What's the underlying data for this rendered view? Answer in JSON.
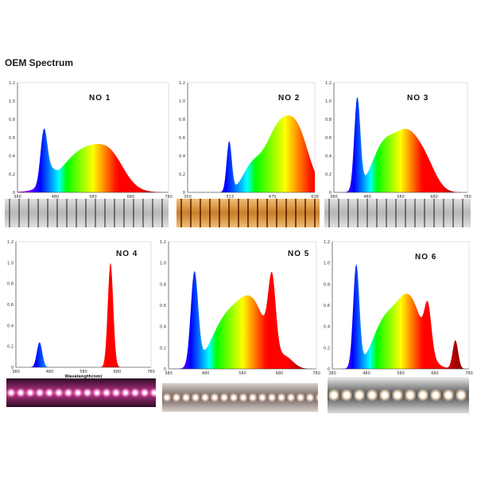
{
  "page": {
    "title": "OEM Spectrum"
  },
  "chart_data": [
    {
      "type": "area",
      "label": "NO 1",
      "xlim": [
        380,
        780
      ],
      "ylim": [
        0,
        1.2
      ],
      "x_ticks": [
        "380",
        "480",
        "580",
        "680",
        "780"
      ],
      "y_ticks": [
        "0",
        "0.2",
        "0.4",
        "0.6",
        "0.8",
        "1.0",
        "1.2"
      ],
      "xlabel": "Wavelength (nm)",
      "peaks": [
        {
          "center": 450,
          "height": 0.6,
          "width": 9
        },
        {
          "center": 470,
          "height": 0.09,
          "width": 10
        },
        {
          "center": 560,
          "height": 0.47,
          "width": 60
        },
        {
          "center": 630,
          "height": 0.22,
          "width": 35
        }
      ],
      "strip_style": "white",
      "strip_tint": "#cfcfcf"
    },
    {
      "type": "area",
      "label": "NO 2",
      "xlim": [
        350,
        650
      ],
      "ylim": [
        0,
        1.2
      ],
      "x_ticks": [
        "350",
        "513",
        "475",
        "638"
      ],
      "y_ticks": [
        "0",
        "0.2",
        "0.4",
        "0.6",
        "0.8",
        "1.0",
        "1.2"
      ],
      "xlabel": "Wavelength(nm)",
      "peaks": [
        {
          "center": 448,
          "height": 0.55,
          "width": 6
        },
        {
          "center": 500,
          "height": 0.25,
          "width": 22
        },
        {
          "center": 560,
          "height": 0.62,
          "width": 30
        },
        {
          "center": 610,
          "height": 0.6,
          "width": 28
        }
      ],
      "strip_style": "warm",
      "strip_tint": "#d9a55a"
    },
    {
      "type": "area",
      "label": "NO 3",
      "xlim": [
        380,
        780
      ],
      "ylim": [
        0,
        1.2
      ],
      "x_ticks": [
        "380",
        "480",
        "580",
        "680",
        "780"
      ],
      "y_ticks": [
        "0",
        "0.2",
        "0.4",
        "0.6",
        "0.8",
        "1.0",
        "1.2"
      ],
      "xlabel": "",
      "peaks": [
        {
          "center": 450,
          "height": 1.0,
          "width": 9
        },
        {
          "center": 525,
          "height": 0.45,
          "width": 35
        },
        {
          "center": 600,
          "height": 0.62,
          "width": 40
        },
        {
          "center": 660,
          "height": 0.2,
          "width": 30
        }
      ],
      "strip_style": "white",
      "strip_tint": "#d4d4d4"
    },
    {
      "type": "area",
      "label": "NO 4",
      "xlim": [
        380,
        780
      ],
      "ylim": [
        0,
        1.2
      ],
      "x_ticks": [
        "380",
        "480",
        "580",
        "680",
        "780"
      ],
      "y_ticks": [
        "0",
        "0.2",
        "0.4",
        "0.6",
        "0.8",
        "1.0",
        "1.2"
      ],
      "xlabel": "Wavelength(nm)",
      "peaks": [
        {
          "center": 450,
          "height": 0.24,
          "width": 8
        },
        {
          "center": 660,
          "height": 1.0,
          "width": 8
        }
      ],
      "strip_style": "pink",
      "strip_tint": "#c0368a"
    },
    {
      "type": "area",
      "label": "NO 5",
      "xlim": [
        380,
        780
      ],
      "ylim": [
        0,
        1.2
      ],
      "x_ticks": [
        "380",
        "480",
        "580",
        "680",
        "780"
      ],
      "y_ticks": [
        "0",
        "0.2",
        "0.4",
        "0.6",
        "0.8",
        "1.0",
        "1.2"
      ],
      "xlabel": "",
      "peaks": [
        {
          "center": 450,
          "height": 0.88,
          "width": 10
        },
        {
          "center": 530,
          "height": 0.4,
          "width": 38
        },
        {
          "center": 605,
          "height": 0.62,
          "width": 40
        },
        {
          "center": 660,
          "height": 0.66,
          "width": 10
        },
        {
          "center": 700,
          "height": 0.08,
          "width": 20
        }
      ],
      "strip_style": "mixed",
      "strip_tint": "#e6d3c9"
    },
    {
      "type": "area",
      "label": "NO 6",
      "xlim": [
        380,
        780
      ],
      "ylim": [
        0,
        1.2
      ],
      "x_ticks": [
        "380",
        "480",
        "580",
        "680",
        "780"
      ],
      "y_ticks": [
        "0",
        "0.2",
        "0.4",
        "0.6",
        "0.8",
        "1.0",
        "1.2"
      ],
      "xlabel": "",
      "peaks": [
        {
          "center": 450,
          "height": 0.96,
          "width": 9
        },
        {
          "center": 530,
          "height": 0.4,
          "width": 35
        },
        {
          "center": 605,
          "height": 0.66,
          "width": 38
        },
        {
          "center": 660,
          "height": 0.4,
          "width": 10
        },
        {
          "center": 740,
          "height": 0.27,
          "width": 8
        }
      ],
      "strip_style": "mixed-dark",
      "strip_tint": "#5a5a5a"
    }
  ]
}
